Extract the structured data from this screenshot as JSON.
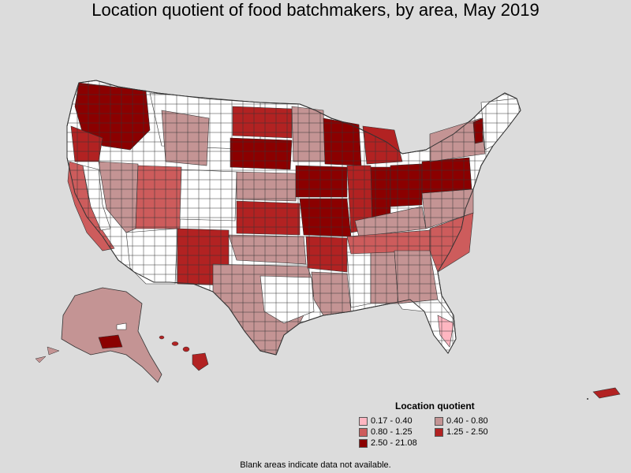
{
  "title": "Location quotient of food batchmakers, by area, May 2019",
  "legend": {
    "title": "Location quotient",
    "items": [
      {
        "label": "0.17 - 0.40",
        "color": "#ffb6c1"
      },
      {
        "label": "0.40 - 0.80",
        "color": "#c49494"
      },
      {
        "label": "0.80 - 1.25",
        "color": "#cd5c5c"
      },
      {
        "label": "1.25 - 2.50",
        "color": "#b22222"
      },
      {
        "label": "2.50 - 21.08",
        "color": "#8b0000"
      }
    ]
  },
  "footnote": "Blank areas indicate data not available.",
  "colors": {
    "background": "#dcdcdc",
    "no_data": "#ffffff",
    "border": "#333333"
  }
}
